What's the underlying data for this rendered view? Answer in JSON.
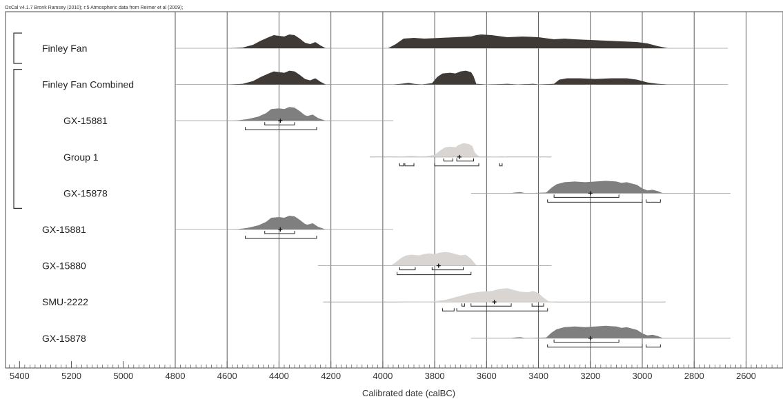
{
  "header": {
    "text": "OxCal v4.1.7 Bronk Ramsey (2010); r:5 Atmospheric data from Reimer et al (2009);"
  },
  "colors": {
    "background": "#ffffff",
    "frame": "#4a4a4a",
    "gridline": "#5a5a5a",
    "baseline": "#9a9a9a",
    "dark_distribution": "#3f3a36",
    "medium_distribution": "#7f7f7f",
    "light_distribution": "#d8d5d2",
    "range_bracket": "#222222"
  },
  "chart_data": {
    "type": "area",
    "title": "",
    "xlabel": "Calibrated date (calBC)",
    "ylabel": "",
    "x_axis_reversed": true,
    "xlim": [
      5440,
      2480
    ],
    "gridlines_at": [
      4800,
      4600,
      4400,
      4200,
      4000,
      3800,
      3600,
      3400,
      3200,
      3000,
      2800,
      2600
    ],
    "tick_labels": [
      "5400",
      "5200",
      "5000",
      "4800",
      "4600",
      "4400",
      "4200",
      "4000",
      "3800",
      "3600",
      "3400",
      "3200",
      "3000",
      "2800",
      "2600"
    ],
    "tick_values": [
      5400,
      5200,
      5000,
      4800,
      4600,
      4400,
      4200,
      4000,
      3800,
      3600,
      3400,
      3200,
      3000,
      2800,
      2600
    ],
    "grid": true,
    "legend": "none",
    "structure_brackets": [
      {
        "name": "Finley Fan",
        "from_row": 0,
        "to_row": 0
      },
      {
        "name": "Finley Fan Combined",
        "from_row": 1,
        "to_row": 4
      }
    ],
    "series": [
      {
        "name": "Finley Fan",
        "indent": 0,
        "shade": "dark",
        "line_range": [
          4800,
          2670
        ],
        "density": [
          [
            4590,
            0
          ],
          [
            4540,
            0.05
          ],
          [
            4500,
            0.25
          ],
          [
            4470,
            0.55
          ],
          [
            4440,
            0.8
          ],
          [
            4420,
            0.95
          ],
          [
            4400,
            0.9
          ],
          [
            4380,
            0.85
          ],
          [
            4360,
            1.0
          ],
          [
            4340,
            0.95
          ],
          [
            4320,
            0.7
          ],
          [
            4300,
            0.4
          ],
          [
            4280,
            0.3
          ],
          [
            4260,
            0.45
          ],
          [
            4240,
            0.2
          ],
          [
            4220,
            0
          ],
          [
            4180,
            0
          ],
          [
            3980,
            0
          ],
          [
            3950,
            0.3
          ],
          [
            3920,
            0.7
          ],
          [
            3880,
            0.75
          ],
          [
            3840,
            0.7
          ],
          [
            3780,
            0.75
          ],
          [
            3720,
            0.8
          ],
          [
            3660,
            0.85
          ],
          [
            3640,
            0.95
          ],
          [
            3620,
            1.0
          ],
          [
            3580,
            0.95
          ],
          [
            3520,
            0.8
          ],
          [
            3460,
            0.85
          ],
          [
            3400,
            0.8
          ],
          [
            3340,
            0.65
          ],
          [
            3300,
            0.7
          ],
          [
            3260,
            0.65
          ],
          [
            3200,
            0.6
          ],
          [
            3140,
            0.55
          ],
          [
            3080,
            0.5
          ],
          [
            3020,
            0.45
          ],
          [
            2980,
            0.35
          ],
          [
            2940,
            0.15
          ],
          [
            2900,
            0
          ]
        ]
      },
      {
        "name": "Finley Fan Combined",
        "indent": 0,
        "shade": "dark",
        "line_range": [
          4800,
          2670
        ],
        "density": [
          [
            4590,
            0
          ],
          [
            4540,
            0.05
          ],
          [
            4500,
            0.25
          ],
          [
            4470,
            0.55
          ],
          [
            4440,
            0.8
          ],
          [
            4420,
            0.95
          ],
          [
            4400,
            0.9
          ],
          [
            4380,
            0.85
          ],
          [
            4360,
            1.0
          ],
          [
            4340,
            0.95
          ],
          [
            4320,
            0.7
          ],
          [
            4300,
            0.4
          ],
          [
            4280,
            0.3
          ],
          [
            4260,
            0.45
          ],
          [
            4240,
            0.2
          ],
          [
            4220,
            0
          ],
          [
            3960,
            0
          ],
          [
            3930,
            0.05
          ],
          [
            3900,
            0.12
          ],
          [
            3880,
            0.05
          ],
          [
            3850,
            0
          ],
          [
            3810,
            0.1
          ],
          [
            3790,
            0.55
          ],
          [
            3770,
            0.8
          ],
          [
            3740,
            0.85
          ],
          [
            3720,
            0.8
          ],
          [
            3700,
            0.95
          ],
          [
            3680,
            1.0
          ],
          [
            3660,
            0.9
          ],
          [
            3650,
            0.6
          ],
          [
            3640,
            0.05
          ],
          [
            3600,
            0
          ],
          [
            3560,
            0.02
          ],
          [
            3520,
            0.05
          ],
          [
            3480,
            0
          ],
          [
            3420,
            0.05
          ],
          [
            3400,
            0
          ],
          [
            3340,
            0.05
          ],
          [
            3320,
            0.35
          ],
          [
            3290,
            0.45
          ],
          [
            3240,
            0.45
          ],
          [
            3180,
            0.4
          ],
          [
            3120,
            0.45
          ],
          [
            3060,
            0.45
          ],
          [
            3020,
            0.35
          ],
          [
            2980,
            0.15
          ],
          [
            2940,
            0.05
          ],
          [
            2900,
            0
          ]
        ]
      },
      {
        "name": "GX-15881",
        "indent": 1,
        "shade": "medium",
        "line_range": [
          4800,
          3960
        ],
        "density": [
          [
            4590,
            0
          ],
          [
            4560,
            0.02
          ],
          [
            4520,
            0.12
          ],
          [
            4480,
            0.3
          ],
          [
            4450,
            0.55
          ],
          [
            4430,
            0.85
          ],
          [
            4400,
            0.9
          ],
          [
            4380,
            0.85
          ],
          [
            4360,
            1.0
          ],
          [
            4340,
            0.95
          ],
          [
            4320,
            0.7
          ],
          [
            4300,
            0.4
          ],
          [
            4290,
            0.35
          ],
          [
            4270,
            0.45
          ],
          [
            4250,
            0.2
          ],
          [
            4220,
            0
          ],
          [
            4180,
            0
          ]
        ],
        "median": 4395,
        "ranges_68": [
          [
            4455,
            4340
          ]
        ],
        "ranges_95": [
          [
            4530,
            4255
          ]
        ]
      },
      {
        "name": "Group 1",
        "indent": 1,
        "shade": "light",
        "line_range": [
          4050,
          3350
        ],
        "density": [
          [
            3950,
            0
          ],
          [
            3920,
            0.04
          ],
          [
            3890,
            0.08
          ],
          [
            3860,
            0.03
          ],
          [
            3830,
            0.05
          ],
          [
            3800,
            0.15
          ],
          [
            3780,
            0.45
          ],
          [
            3760,
            0.7
          ],
          [
            3740,
            0.75
          ],
          [
            3720,
            0.7
          ],
          [
            3710,
            0.85
          ],
          [
            3690,
            1.0
          ],
          [
            3670,
            0.95
          ],
          [
            3655,
            0.8
          ],
          [
            3645,
            0.3
          ],
          [
            3630,
            0.05
          ],
          [
            3600,
            0
          ],
          [
            3560,
            0.02
          ],
          [
            3540,
            0.05
          ],
          [
            3520,
            0
          ]
        ],
        "median": 3705,
        "ranges_68": [
          [
            3765,
            3730
          ],
          [
            3715,
            3650
          ]
        ],
        "ranges_95": [
          [
            3935,
            3920
          ],
          [
            3915,
            3880
          ],
          [
            3800,
            3630
          ],
          [
            3550,
            3540
          ]
        ]
      },
      {
        "name": "GX-15878",
        "indent": 1,
        "shade": "medium",
        "line_range": [
          3660,
          2660
        ],
        "density": [
          [
            3510,
            0
          ],
          [
            3490,
            0.05
          ],
          [
            3470,
            0.08
          ],
          [
            3450,
            0
          ],
          [
            3370,
            0.05
          ],
          [
            3350,
            0.4
          ],
          [
            3330,
            0.65
          ],
          [
            3300,
            0.8
          ],
          [
            3260,
            0.85
          ],
          [
            3220,
            0.8
          ],
          [
            3180,
            0.85
          ],
          [
            3140,
            0.9
          ],
          [
            3100,
            0.85
          ],
          [
            3080,
            0.75
          ],
          [
            3060,
            0.8
          ],
          [
            3040,
            0.7
          ],
          [
            3020,
            0.6
          ],
          [
            3000,
            0.35
          ],
          [
            2980,
            0.2
          ],
          [
            2960,
            0.25
          ],
          [
            2940,
            0.15
          ],
          [
            2920,
            0
          ]
        ],
        "median": 3200,
        "ranges_68": [
          [
            3340,
            3090
          ]
        ],
        "ranges_95": [
          [
            3365,
            3000
          ],
          [
            2985,
            2930
          ]
        ]
      },
      {
        "name": "GX-15881",
        "indent": 0,
        "shade": "medium",
        "line_range": [
          4800,
          3960
        ],
        "density": [
          [
            4590,
            0
          ],
          [
            4560,
            0.02
          ],
          [
            4520,
            0.12
          ],
          [
            4480,
            0.3
          ],
          [
            4450,
            0.55
          ],
          [
            4430,
            0.85
          ],
          [
            4400,
            0.9
          ],
          [
            4380,
            0.85
          ],
          [
            4360,
            1.0
          ],
          [
            4340,
            0.95
          ],
          [
            4320,
            0.7
          ],
          [
            4300,
            0.4
          ],
          [
            4290,
            0.35
          ],
          [
            4270,
            0.45
          ],
          [
            4250,
            0.2
          ],
          [
            4220,
            0
          ],
          [
            4180,
            0
          ]
        ],
        "median": 4395,
        "ranges_68": [
          [
            4455,
            4340
          ]
        ],
        "ranges_95": [
          [
            4530,
            4255
          ]
        ]
      },
      {
        "name": "GX-15880",
        "indent": 0,
        "shade": "light",
        "line_range": [
          4250,
          3350
        ],
        "density": [
          [
            3970,
            0
          ],
          [
            3950,
            0.25
          ],
          [
            3930,
            0.55
          ],
          [
            3910,
            0.75
          ],
          [
            3890,
            0.8
          ],
          [
            3860,
            0.75
          ],
          [
            3840,
            0.85
          ],
          [
            3820,
            0.9
          ],
          [
            3800,
            0.85
          ],
          [
            3780,
            0.95
          ],
          [
            3760,
            1.0
          ],
          [
            3740,
            0.95
          ],
          [
            3720,
            0.85
          ],
          [
            3700,
            0.75
          ],
          [
            3680,
            0.8
          ],
          [
            3660,
            0.5
          ],
          [
            3640,
            0.05
          ],
          [
            3620,
            0
          ]
        ],
        "median": 3785,
        "ranges_68": [
          [
            3935,
            3875
          ],
          [
            3810,
            3690
          ]
        ],
        "ranges_95": [
          [
            3945,
            3660
          ]
        ]
      },
      {
        "name": "SMU-2222",
        "indent": 0,
        "shade": "light",
        "line_range": [
          4230,
          2910
        ],
        "density": [
          [
            3950,
            0
          ],
          [
            3850,
            0.02
          ],
          [
            3800,
            0.05
          ],
          [
            3760,
            0.15
          ],
          [
            3720,
            0.35
          ],
          [
            3690,
            0.5
          ],
          [
            3660,
            0.65
          ],
          [
            3620,
            0.75
          ],
          [
            3580,
            0.8
          ],
          [
            3550,
            0.95
          ],
          [
            3520,
            1.0
          ],
          [
            3500,
            0.9
          ],
          [
            3470,
            0.75
          ],
          [
            3440,
            0.7
          ],
          [
            3420,
            0.8
          ],
          [
            3400,
            0.65
          ],
          [
            3380,
            0.3
          ],
          [
            3360,
            0.05
          ],
          [
            3330,
            0
          ]
        ],
        "median": 3570,
        "ranges_68": [
          [
            3695,
            3685
          ],
          [
            3660,
            3505
          ],
          [
            3425,
            3380
          ]
        ],
        "ranges_95": [
          [
            3770,
            3725
          ],
          [
            3715,
            3365
          ]
        ]
      },
      {
        "name": "GX-15878",
        "indent": 0,
        "shade": "medium",
        "line_range": [
          3660,
          2660
        ],
        "density": [
          [
            3510,
            0
          ],
          [
            3490,
            0.05
          ],
          [
            3470,
            0.08
          ],
          [
            3450,
            0
          ],
          [
            3370,
            0.05
          ],
          [
            3350,
            0.4
          ],
          [
            3330,
            0.65
          ],
          [
            3300,
            0.8
          ],
          [
            3260,
            0.85
          ],
          [
            3220,
            0.8
          ],
          [
            3180,
            0.85
          ],
          [
            3140,
            0.9
          ],
          [
            3100,
            0.85
          ],
          [
            3080,
            0.75
          ],
          [
            3060,
            0.8
          ],
          [
            3040,
            0.7
          ],
          [
            3020,
            0.6
          ],
          [
            3000,
            0.35
          ],
          [
            2980,
            0.2
          ],
          [
            2960,
            0.25
          ],
          [
            2940,
            0.15
          ],
          [
            2920,
            0
          ]
        ],
        "median": 3200,
        "ranges_68": [
          [
            3340,
            3090
          ]
        ],
        "ranges_95": [
          [
            3365,
            3000
          ],
          [
            2985,
            2930
          ]
        ]
      }
    ]
  }
}
